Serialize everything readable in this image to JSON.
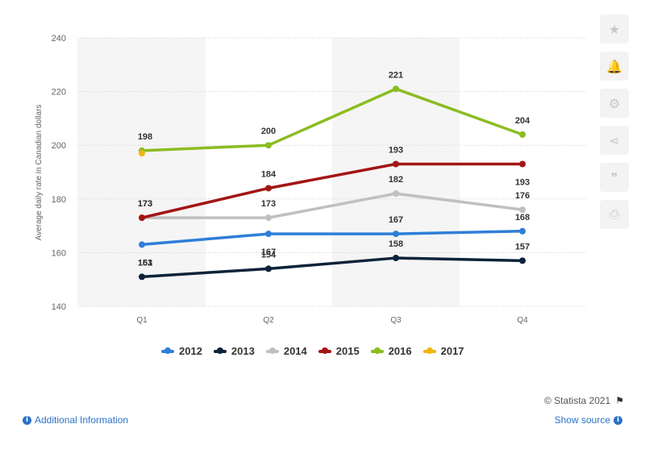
{
  "chart_data": {
    "type": "line",
    "categories": [
      "Q1",
      "Q2",
      "Q3",
      "Q4"
    ],
    "ylabel": "Average daily rate in Canadian dollars",
    "ylim": [
      140,
      240
    ],
    "yticks": [
      140,
      160,
      180,
      200,
      220,
      240
    ],
    "grid": true,
    "legend_position": "bottom",
    "series": [
      {
        "name": "2012",
        "color": "#2f7ed8",
        "values": [
          163,
          167,
          167,
          168
        ],
        "labels": [
          "163",
          "167",
          "167",
          "168"
        ]
      },
      {
        "name": "2013",
        "color": "#0d233a",
        "values": [
          151,
          154,
          158,
          157
        ],
        "labels": [
          "151",
          "154",
          "158",
          "157"
        ]
      },
      {
        "name": "2014",
        "color": "#c0c0c0",
        "values": [
          173,
          173,
          182,
          176
        ],
        "labels": [
          "173",
          "173",
          "182",
          "176"
        ]
      },
      {
        "name": "2015",
        "color": "#a31515",
        "values": [
          173,
          184,
          193,
          193
        ],
        "labels": [
          "173",
          "184",
          "193",
          "193"
        ]
      },
      {
        "name": "2016",
        "color": "#8bbc21",
        "values": [
          198,
          200,
          221,
          204
        ],
        "labels": [
          "198",
          "200",
          "221",
          "204"
        ]
      },
      {
        "name": "2017",
        "color": "#f2b515",
        "values": [
          197,
          null,
          null,
          null
        ],
        "labels": [
          "",
          "",
          "",
          ""
        ]
      }
    ]
  },
  "toolbar": {
    "icons": [
      "star-icon",
      "bell-icon",
      "gear-icon",
      "share-icon",
      "quote-icon",
      "print-icon"
    ],
    "glyphs": [
      "★",
      "🔔",
      "⚙",
      "⋖",
      "❞",
      "⎙"
    ]
  },
  "footer": {
    "credit": "© Statista 2021",
    "additional_info": "Additional Information",
    "show_source": "Show source"
  }
}
